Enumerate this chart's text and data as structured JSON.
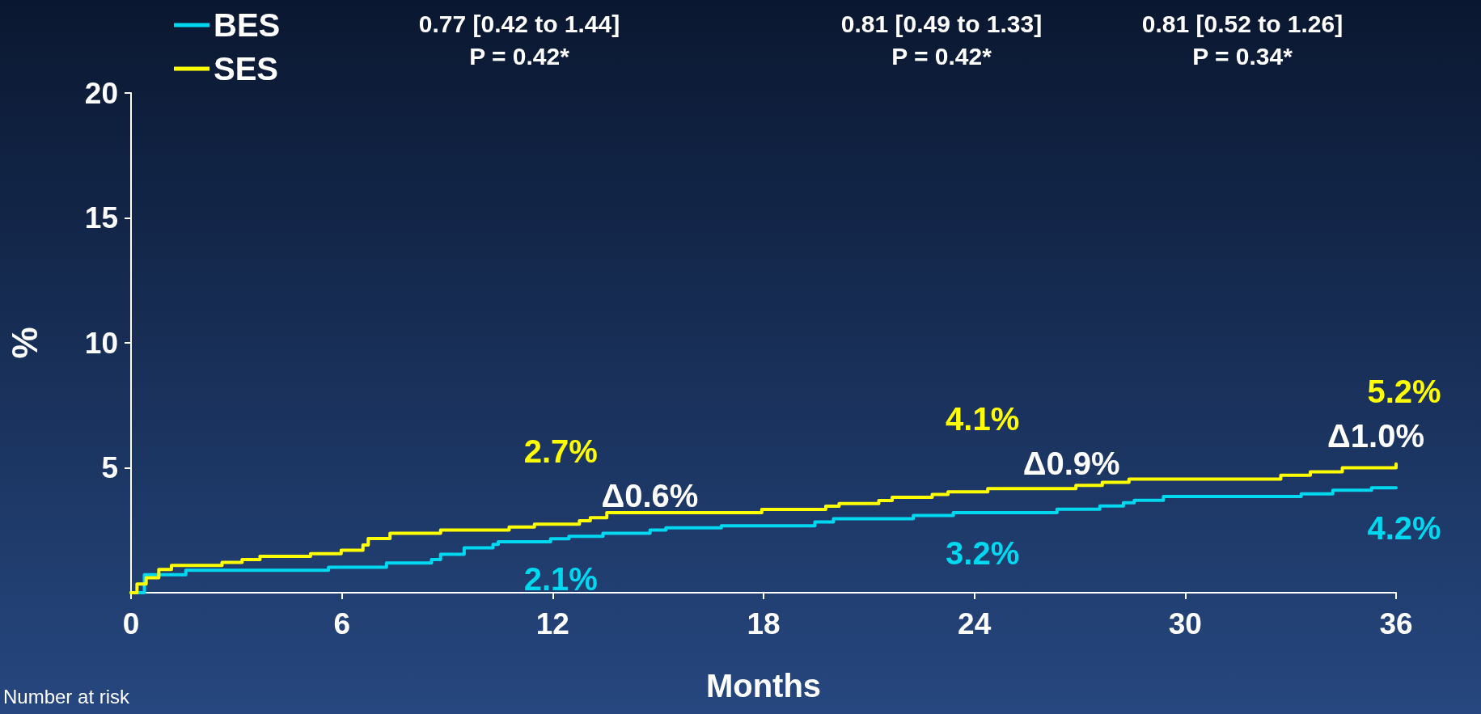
{
  "chart_data": {
    "type": "step",
    "xlabel": "Months",
    "ylabel": "%",
    "xlim": [
      0,
      36
    ],
    "xticks": [
      0,
      6,
      12,
      18,
      24,
      30,
      36
    ],
    "ylim": [
      0,
      20
    ],
    "yticks": [
      5,
      10,
      15,
      20
    ],
    "grid": false,
    "legend": "top left",
    "marker": "none",
    "line_style": "solid",
    "series": [
      {
        "name": "BES",
        "color": "#00d8f0",
        "x": [
          0,
          0.38,
          1.56,
          5.62,
          7.27,
          8.55,
          8.81,
          9.48,
          10.3,
          10.45,
          11.94,
          12.46,
          13.43,
          14.77,
          15.22,
          16.8,
          19.46,
          19.99,
          22.26,
          23.4,
          26.35,
          27.57,
          28.24,
          28.55,
          29.38,
          33.3,
          34.2,
          35.3,
          36
        ],
        "values": [
          0,
          0.72,
          0.9,
          1.02,
          1.19,
          1.33,
          1.54,
          1.8,
          1.93,
          2.04,
          2.16,
          2.26,
          2.38,
          2.51,
          2.6,
          2.68,
          2.83,
          2.96,
          3.09,
          3.2,
          3.34,
          3.47,
          3.6,
          3.7,
          3.85,
          3.96,
          4.1,
          4.2,
          4.2
        ]
      },
      {
        "name": "SES",
        "color": "#ffff00",
        "x": [
          0,
          0.17,
          0.43,
          0.79,
          1.15,
          2.59,
          3.16,
          3.67,
          5.11,
          5.98,
          6.6,
          6.75,
          7.37,
          8.81,
          10.76,
          11.48,
          12.76,
          13.07,
          13.54,
          17.95,
          19.77,
          20.15,
          21.28,
          21.66,
          22.8,
          23.25,
          24.38,
          26.89,
          27.64,
          28.4,
          32.72,
          33.56,
          34.47,
          36
        ],
        "values": [
          0,
          0.35,
          0.6,
          0.93,
          1.09,
          1.21,
          1.33,
          1.46,
          1.56,
          1.7,
          1.91,
          2.17,
          2.38,
          2.51,
          2.63,
          2.74,
          2.88,
          3.0,
          3.2,
          3.33,
          3.46,
          3.57,
          3.69,
          3.82,
          3.93,
          4.04,
          4.17,
          4.3,
          4.42,
          4.55,
          4.7,
          4.84,
          5.0,
          5.15
        ]
      }
    ],
    "annotations": [
      "0.77 [0.42 to 1.44]",
      "P = 0.42*",
      "0.81 [0.49 to 1.33]",
      "P = 0.42*",
      "0.81 [0.52 to 1.26]",
      "P = 0.34*",
      "Δ0.6%",
      "Δ0.9%",
      "Δ1.0%",
      "Number at risk",
      {
        "text": "2.7%",
        "x": 12,
        "y": 2.74
      },
      {
        "text": "2.1%",
        "x": 12,
        "y": 2.16
      },
      {
        "text": "4.1%",
        "x": 24,
        "y": 4.04
      },
      {
        "text": "3.2%",
        "x": 24,
        "y": 3.2
      },
      {
        "text": "5.2%",
        "x": 36,
        "y": 5.15
      },
      {
        "text": "4.2%",
        "x": 36,
        "y": 4.2
      }
    ]
  }
}
